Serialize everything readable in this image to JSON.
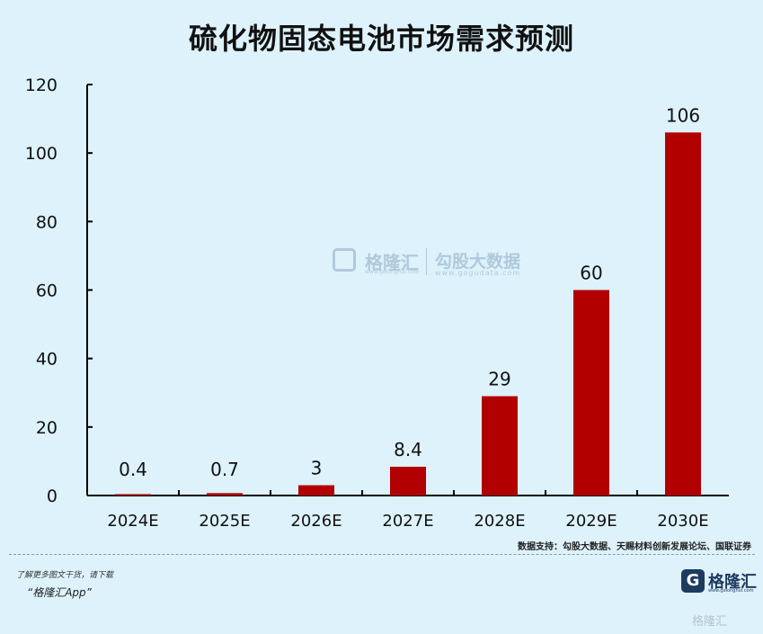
{
  "chart_data": {
    "type": "bar",
    "title": "硫化物固态电池市场需求预测",
    "categories": [
      "2024E",
      "2025E",
      "2026E",
      "2027E",
      "2028E",
      "2029E",
      "2030E"
    ],
    "values": [
      0.4,
      0.7,
      3,
      8.4,
      29,
      60,
      106
    ],
    "value_labels": [
      "0.4",
      "0.7",
      "3",
      "8.4",
      "29",
      "60",
      "106"
    ],
    "ylim": [
      0,
      120
    ],
    "yticks": [
      0,
      20,
      40,
      60,
      80,
      100,
      120
    ],
    "xlabel": "",
    "ylabel": "",
    "bar_color": "#b20000",
    "grid": false
  },
  "watermark": {
    "brand": "格隆汇",
    "brand_sub": "www.gelonghui.com",
    "partner": "勾股大数据",
    "partner_sub": "www.gogudata.com"
  },
  "source": "数据支持：勾股大数据、天赐材料创新发展论坛、国联证券",
  "footer": {
    "line1": "了解更多图文干货，请下载",
    "line2": "“格隆汇App”"
  },
  "logo": {
    "mark": "G",
    "name": "格隆汇",
    "url": "www.gelonghui.com"
  },
  "corner_mark": "格隆汇"
}
